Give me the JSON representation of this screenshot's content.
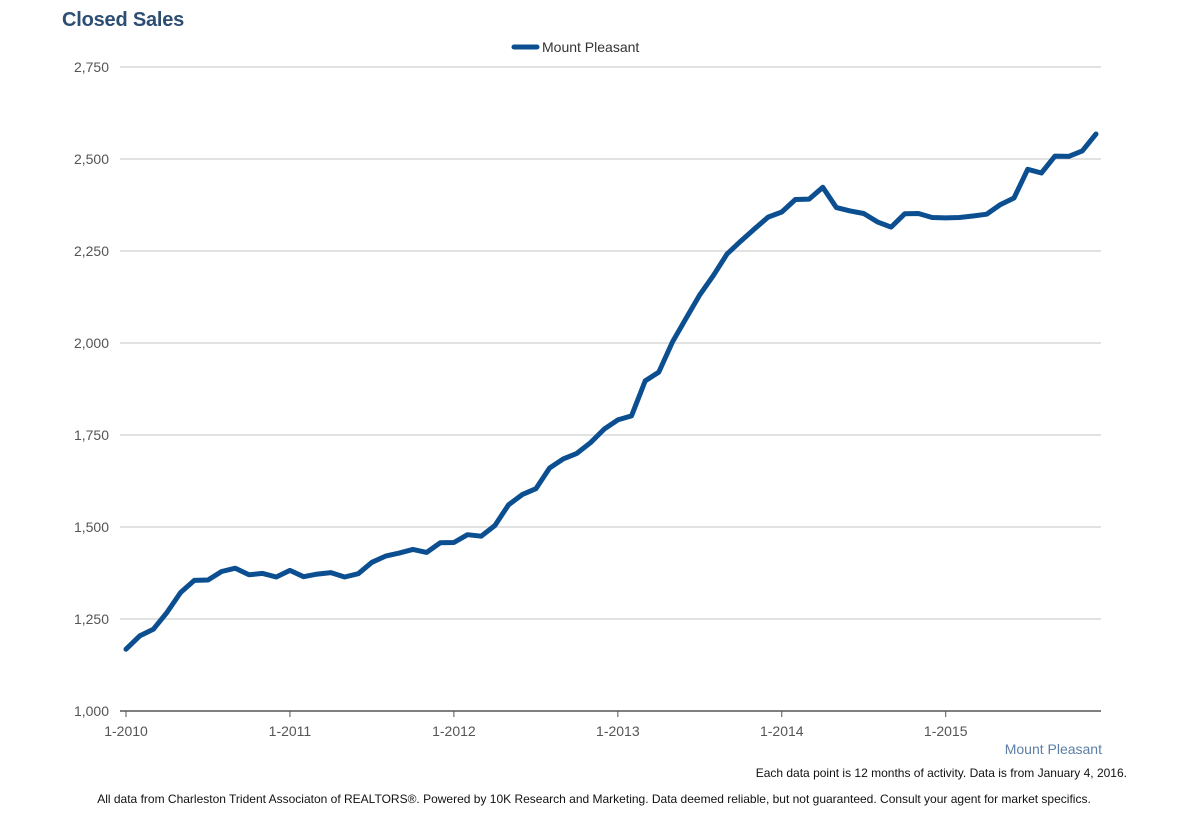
{
  "chart_data": {
    "type": "line",
    "title": "Closed Sales",
    "xlabel": "",
    "ylabel": "",
    "ylim": [
      1000,
      2750
    ],
    "yticks": [
      1000,
      1250,
      1500,
      1750,
      2000,
      2250,
      2500,
      2750
    ],
    "ytick_labels": [
      "1,000",
      "1,250",
      "1,500",
      "1,750",
      "2,000",
      "2,250",
      "2,500",
      "2,750"
    ],
    "xticks": [
      {
        "index": 0,
        "label": "1-2010"
      },
      {
        "index": 12,
        "label": "1-2011"
      },
      {
        "index": 24,
        "label": "1-2012"
      },
      {
        "index": 36,
        "label": "1-2013"
      },
      {
        "index": 48,
        "label": "1-2014"
      },
      {
        "index": 60,
        "label": "1-2015"
      }
    ],
    "x": [
      "1-2010",
      "2-2010",
      "3-2010",
      "4-2010",
      "5-2010",
      "6-2010",
      "7-2010",
      "8-2010",
      "9-2010",
      "10-2010",
      "11-2010",
      "12-2010",
      "1-2011",
      "2-2011",
      "3-2011",
      "4-2011",
      "5-2011",
      "6-2011",
      "7-2011",
      "8-2011",
      "9-2011",
      "10-2011",
      "11-2011",
      "12-2011",
      "1-2012",
      "2-2012",
      "3-2012",
      "4-2012",
      "5-2012",
      "6-2012",
      "7-2012",
      "8-2012",
      "9-2012",
      "10-2012",
      "11-2012",
      "12-2012",
      "1-2013",
      "2-2013",
      "3-2013",
      "4-2013",
      "5-2013",
      "6-2013",
      "7-2013",
      "8-2013",
      "9-2013",
      "10-2013",
      "11-2013",
      "12-2013",
      "1-2014",
      "2-2014",
      "3-2014",
      "4-2014",
      "5-2014",
      "6-2014",
      "7-2014",
      "8-2014",
      "9-2014",
      "10-2014",
      "11-2014",
      "12-2014",
      "1-2015",
      "2-2015",
      "3-2015",
      "4-2015",
      "5-2015",
      "6-2015",
      "7-2015",
      "8-2015",
      "9-2015",
      "10-2015",
      "11-2015",
      "12-2015"
    ],
    "legend_position": "top-center",
    "grid": true,
    "series": [
      {
        "name": "Mount Pleasant",
        "color": "#0b4f91",
        "values": [
          1168,
          1204,
          1222,
          1268,
          1322,
          1355,
          1356,
          1379,
          1388,
          1370,
          1374,
          1364,
          1382,
          1365,
          1372,
          1376,
          1364,
          1373,
          1404,
          1421,
          1429,
          1439,
          1431,
          1457,
          1458,
          1479,
          1475,
          1504,
          1560,
          1588,
          1604,
          1660,
          1685,
          1700,
          1729,
          1766,
          1791,
          1802,
          1897,
          1921,
          2003,
          2067,
          2131,
          2184,
          2242,
          2277,
          2310,
          2342,
          2356,
          2390,
          2391,
          2423,
          2368,
          2359,
          2352,
          2329,
          2315,
          2351,
          2352,
          2341,
          2340,
          2341,
          2345,
          2350,
          2376,
          2394,
          2472,
          2462,
          2508,
          2507,
          2522,
          2568
        ]
      }
    ]
  },
  "legend": {
    "label": "Mount Pleasant"
  },
  "corner_label": "Mount Pleasant",
  "note": "Each data point is 12 months of activity. Data is from January 4, 2016.",
  "footer": "All data from Charleston Trident Associaton of REALTORS®. Powered by 10K Research and Marketing. Data deemed reliable, but not guaranteed. Consult your agent for market specifics."
}
